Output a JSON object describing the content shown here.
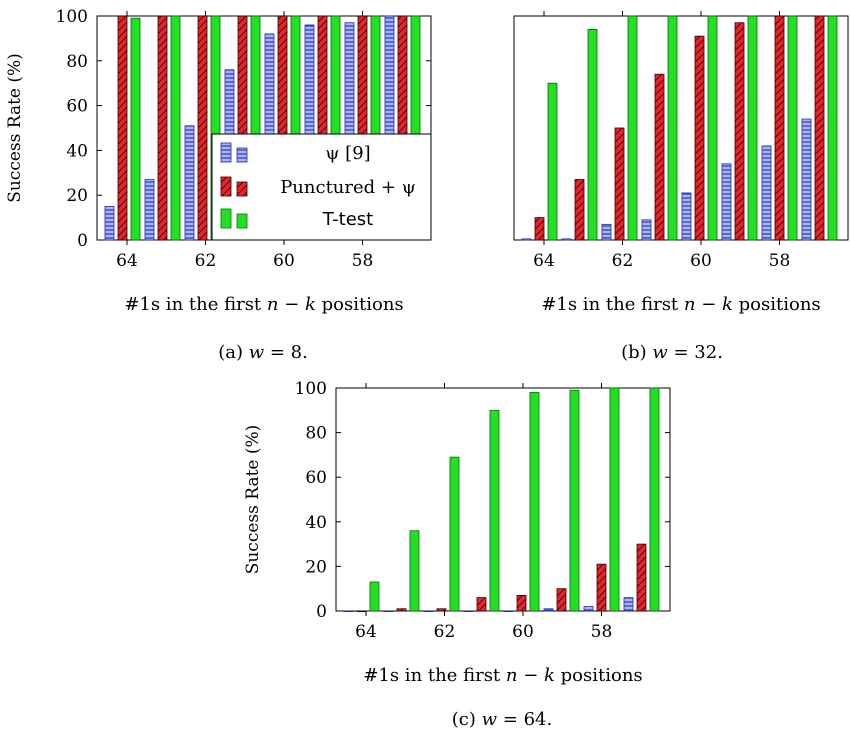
{
  "colors": {
    "psi_fill": "#aab4f2",
    "psi_edge": "#1c2db5",
    "punctured_fill": "#e6242b",
    "punctured_hatch": "#300000",
    "ttest_fill": "#22e022",
    "ttest_edge": "#0a6a0a",
    "axis": "#000000"
  },
  "chart_data": [
    {
      "id": "a",
      "type": "bar",
      "caption_prefix": "(a)",
      "caption_var": "w",
      "caption_value": "= 8.",
      "ylabel": "Success Rate (%)",
      "xlabel": "#1s in the first n − k positions",
      "ylim": [
        0,
        100
      ],
      "yticks": [
        "0",
        "20",
        "40",
        "60",
        "80",
        "100"
      ],
      "xticks": [
        "64",
        "62",
        "60",
        "58"
      ],
      "grid": false,
      "legend_position": "bottom-right",
      "series": [
        {
          "name": "ψ [9]",
          "values": [
            15,
            27,
            51,
            76,
            92,
            96,
            97,
            100
          ]
        },
        {
          "name": "Punctured + ψ",
          "values": [
            100,
            100,
            100,
            100,
            100,
            100,
            100,
            100
          ]
        },
        {
          "name": "T-test",
          "values": [
            99,
            100,
            100,
            100,
            100,
            100,
            100,
            100
          ]
        }
      ]
    },
    {
      "id": "b",
      "type": "bar",
      "caption_prefix": "(b)",
      "caption_var": "w",
      "caption_value": "= 32.",
      "ylabel": "",
      "xlabel": "#1s in the first n − k positions",
      "ylim": [
        0,
        100
      ],
      "yticks": [],
      "xticks": [
        "64",
        "62",
        "60",
        "58"
      ],
      "grid": false,
      "series": [
        {
          "values": [
            0.5,
            0.5,
            7,
            9,
            21,
            34,
            42,
            54
          ]
        },
        {
          "values": [
            10,
            27,
            50,
            74,
            91,
            97,
            100,
            100
          ]
        },
        {
          "values": [
            70,
            94,
            100,
            100,
            100,
            100,
            100,
            100
          ]
        }
      ]
    },
    {
      "id": "c",
      "type": "bar",
      "caption_prefix": "(c)",
      "caption_var": "w",
      "caption_value": "= 64.",
      "ylabel": "Success Rate (%)",
      "xlabel": "#1s in the first n − k positions",
      "ylim": [
        0,
        100
      ],
      "yticks": [
        "0",
        "20",
        "40",
        "60",
        "80",
        "100"
      ],
      "xticks": [
        "64",
        "62",
        "60",
        "58"
      ],
      "grid": false,
      "series": [
        {
          "values": [
            0,
            0,
            0,
            0,
            0,
            1,
            2,
            6
          ]
        },
        {
          "values": [
            0,
            1,
            1,
            6,
            7,
            10,
            21,
            30
          ]
        },
        {
          "values": [
            13,
            36,
            69,
            90,
            98,
            99,
            100,
            100
          ]
        }
      ]
    }
  ]
}
